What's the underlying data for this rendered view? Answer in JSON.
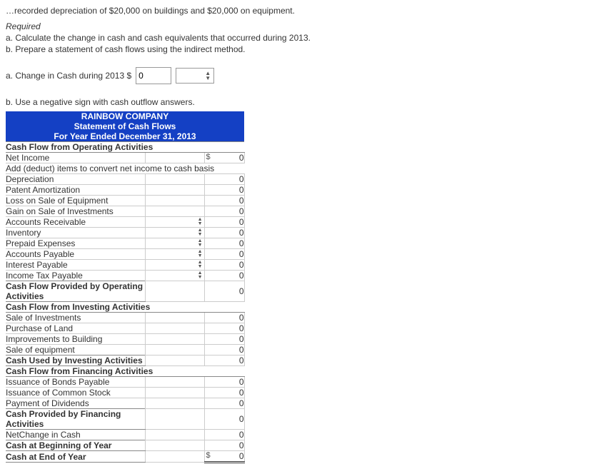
{
  "truncated_line": "…recorded depreciation of $20,000 on buildings and $20,000 on equipment.",
  "required_head": "Required",
  "req_a": "a. Calculate the change in cash and cash equivalents that occurred during 2013.",
  "req_b": "b. Prepare a statement of cash flows using the indirect method.",
  "part_a_label": "a. Change in Cash during 2013 $",
  "part_a_value": "0",
  "part_b_note": "b. Use a negative sign with cash outflow answers.",
  "header": {
    "company": "RAINBOW COMPANY",
    "title": "Statement of Cash Flows",
    "period": "For Year Ended December 31, 2013"
  },
  "sections": {
    "op_head": "Cash Flow from Operating Activities",
    "net_income": "Net Income",
    "adj_head": "Add (deduct) items to convert net income to cash basis",
    "dep": "Depreciation",
    "pat": "Patent Amortization",
    "loss_eq": "Loss on Sale of Equipment",
    "gain_inv": "Gain on Sale of Investments",
    "ar": "Accounts Receivable",
    "inv": "Inventory",
    "pe": "Prepaid Expenses",
    "ap": "Accounts Payable",
    "ip": "Interest Payable",
    "itp": "Income Tax Payable",
    "op_total": "Cash Flow Provided by Operating Activities",
    "inv_head": "Cash Flow from Investing Activities",
    "sale_inv": "Sale of Investments",
    "purch_land": "Purchase of Land",
    "impr_bldg": "Improvements to Building",
    "sale_eq": "Sale of equipment",
    "inv_total": "Cash Used by Investing Activities",
    "fin_head": "Cash Flow from Financing Activities",
    "bonds": "Issuance of Bonds Payable",
    "stock": "Issuance of Common Stock",
    "div": "Payment of Dividends",
    "fin_total": "Cash Provided by Financing Activities",
    "net_change": "NetChange in Cash",
    "beg": "Cash at Beginning of Year",
    "end": "Cash at End of Year"
  },
  "zero": "0",
  "dollar": "$"
}
